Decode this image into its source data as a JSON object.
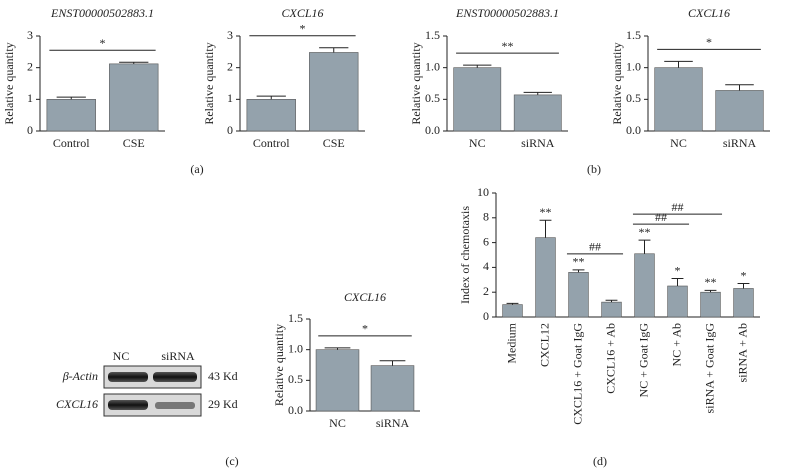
{
  "chart_data": [
    {
      "type": "bar",
      "title": "ENST00000502883.1",
      "y_label": "Relative quantity",
      "categories": [
        "Control",
        "CSE"
      ],
      "values": [
        1.0,
        2.12
      ],
      "errors": [
        0.07,
        0.05
      ],
      "color": "#94a2ac",
      "ylim": [
        0,
        3
      ],
      "yticks": [
        0,
        1,
        2,
        3
      ],
      "annotations": [
        {
          "text": "*",
          "between": [
            "Control",
            "CSE"
          ]
        }
      ]
    },
    {
      "type": "bar",
      "title": "CXCL16",
      "y_label": "Relative quantity",
      "categories": [
        "Control",
        "CSE"
      ],
      "values": [
        1.0,
        2.48
      ],
      "errors": [
        0.1,
        0.15
      ],
      "color": "#94a2ac",
      "ylim": [
        0,
        3
      ],
      "yticks": [
        0,
        1,
        2,
        3
      ],
      "annotations": [
        {
          "text": "*",
          "between": [
            "Control",
            "CSE"
          ]
        }
      ]
    },
    {
      "type": "bar",
      "title": "ENST00000502883.1",
      "y_label": "Relative quantity",
      "categories": [
        "NC",
        "siRNA"
      ],
      "values": [
        1.0,
        0.57
      ],
      "errors": [
        0.04,
        0.04
      ],
      "color": "#94a2ac",
      "ylim": [
        0,
        1.5
      ],
      "yticks": [
        {
          "value": 0,
          "label": "0.0"
        },
        0.5,
        {
          "value": 1,
          "label": "1.0"
        },
        1.5
      ],
      "annotations": [
        {
          "text": "**",
          "between": [
            "NC",
            "siRNA"
          ]
        }
      ]
    },
    {
      "type": "bar",
      "title": "CXCL16",
      "y_label": "Relative quantity",
      "categories": [
        "NC",
        "siRNA"
      ],
      "values": [
        1.0,
        0.64
      ],
      "errors": [
        0.1,
        0.09
      ],
      "color": "#94a2ac",
      "ylim": [
        0,
        1.5
      ],
      "yticks": [
        {
          "value": 0,
          "label": "0.0"
        },
        0.5,
        {
          "value": 1,
          "label": "1.0"
        },
        1.5
      ],
      "annotations": [
        {
          "text": "*",
          "between": [
            "NC",
            "siRNA"
          ]
        }
      ]
    },
    {
      "type": "bar",
      "title": "CXCL16",
      "y_label": "Relative quantity",
      "categories": [
        "NC",
        "siRNA"
      ],
      "values": [
        1.0,
        0.74
      ],
      "errors": [
        0.03,
        0.08
      ],
      "color": "#94a2ac",
      "ylim": [
        0,
        1.5
      ],
      "yticks": [
        {
          "value": 0,
          "label": "0.0"
        },
        0.5,
        {
          "value": 1,
          "label": "1.0"
        },
        1.5
      ],
      "annotations": [
        {
          "text": "*",
          "between": [
            "NC",
            "siRNA"
          ]
        }
      ]
    },
    {
      "type": "bar",
      "y_label": "Index of chemotaxis",
      "categories": [
        "Medium",
        "CXCL12",
        "CXCL16 + Goat IgG",
        "CXCL16 + Ab",
        "NC + Goat IgG",
        "NC + Ab",
        "siRNA + Goat IgG",
        "siRNA + Ab"
      ],
      "values": [
        1.0,
        6.4,
        3.6,
        1.2,
        5.1,
        2.5,
        2.0,
        2.3
      ],
      "errors": [
        0.1,
        1.4,
        0.2,
        0.15,
        1.1,
        0.6,
        0.15,
        0.4
      ],
      "bar_labels": [
        null,
        "**",
        "**",
        null,
        "**",
        "*",
        "**",
        "*"
      ],
      "color": "#94a2ac",
      "ylim": [
        0,
        10
      ],
      "yticks": [
        0,
        2,
        4,
        6,
        8,
        10
      ],
      "annotations": [
        {
          "text": "##",
          "between": [
            "CXCL16 + Goat IgG",
            "CXCL16 + Ab"
          ]
        },
        {
          "text": "##",
          "between": [
            "NC + Goat IgG",
            "NC + Ab"
          ]
        },
        {
          "text": "##",
          "between": [
            "NC + Goat IgG",
            "siRNA + Goat IgG"
          ]
        }
      ]
    }
  ],
  "blot": {
    "columns": [
      "NC",
      "siRNA"
    ],
    "rows": [
      {
        "label": "β-Actin",
        "size": "43 Kd"
      },
      {
        "label": "CXCL16",
        "size": "29 Kd"
      }
    ]
  },
  "panel_labels": [
    "(a)",
    "(b)",
    "(c)",
    "(d)"
  ]
}
